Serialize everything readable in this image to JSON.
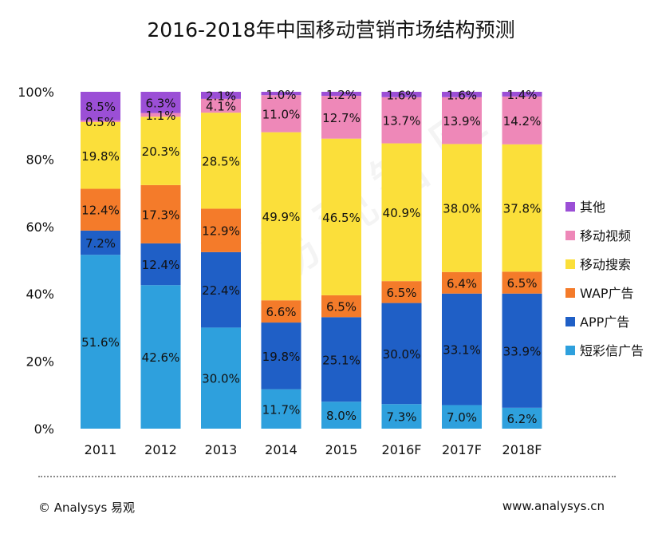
{
  "chart_data": {
    "type": "bar",
    "stacked": true,
    "percent": true,
    "title": "2016-2018年中国移动营销市场结构预测",
    "categories": [
      "2011",
      "2012",
      "2013",
      "2014",
      "2015",
      "2016F",
      "2017F",
      "2018F"
    ],
    "ylim": [
      0,
      100
    ],
    "yticks": [
      "0%",
      "20%",
      "40%",
      "60%",
      "80%",
      "100%"
    ],
    "legend_position": "right",
    "series": [
      {
        "name": "短彩信广告",
        "color": "#2EA0DD",
        "values": [
          51.6,
          42.6,
          30.0,
          11.7,
          8.0,
          7.3,
          7.0,
          6.2
        ],
        "labels": [
          "51.6%",
          "42.6%",
          "30.0%",
          "11.7%",
          "8.0%",
          "7.3%",
          "7.0%",
          "6.2%"
        ]
      },
      {
        "name": "APP广告",
        "color": "#1F5FC6",
        "values": [
          7.2,
          12.4,
          22.4,
          19.8,
          25.1,
          30.0,
          33.1,
          33.9
        ],
        "labels": [
          "7.2%",
          "12.4%",
          "22.4%",
          "19.8%",
          "25.1%",
          "30.0%",
          "33.1%",
          "33.9%"
        ]
      },
      {
        "name": "WAP广告",
        "color": "#F47B2A",
        "values": [
          12.4,
          17.3,
          12.9,
          6.6,
          6.5,
          6.5,
          6.4,
          6.5
        ],
        "labels": [
          "12.4%",
          "17.3%",
          "12.9%",
          "6.6%",
          "6.5%",
          "6.5%",
          "6.4%",
          "6.5%"
        ]
      },
      {
        "name": "移动搜索",
        "color": "#FBDF3A",
        "values": [
          19.8,
          20.3,
          28.5,
          49.9,
          46.5,
          40.9,
          38.0,
          37.8
        ],
        "labels": [
          "19.8%",
          "20.3%",
          "28.5%",
          "49.9%",
          "46.5%",
          "40.9%",
          "38.0%",
          "37.8%"
        ]
      },
      {
        "name": "移动视频",
        "color": "#EE88B8",
        "values": [
          0.5,
          1.1,
          4.1,
          11.0,
          12.7,
          13.7,
          13.9,
          14.2
        ],
        "labels": [
          "0.5%",
          "1.1%",
          "4.1%",
          "11.0%",
          "12.7%",
          "13.7%",
          "13.9%",
          "14.2%"
        ]
      },
      {
        "name": "其他",
        "color": "#9B4FD6",
        "values": [
          8.5,
          6.3,
          2.1,
          1.0,
          1.2,
          1.6,
          1.6,
          1.4
        ],
        "labels": [
          "8.5%",
          "6.3%",
          "2.1%",
          "1.0%",
          "1.2%",
          "1.6%",
          "1.6%",
          "1.4%"
        ]
      }
    ],
    "legend_order": [
      "其他",
      "移动视频",
      "移动搜索",
      "WAP广告",
      "APP广告",
      "短彩信广告"
    ]
  },
  "footer": {
    "copyright": "© Analysys 易观",
    "website": "www.analysys.cn"
  },
  "watermark": "易观智库"
}
